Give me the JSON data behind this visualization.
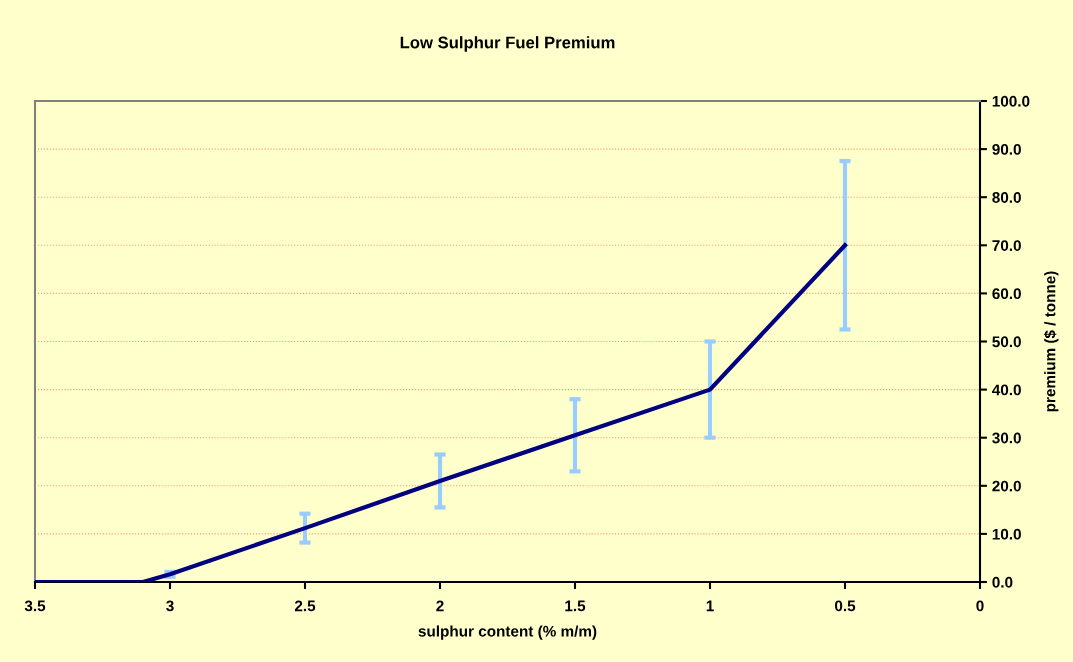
{
  "chart_data": {
    "type": "line",
    "title": "Low Sulphur Fuel Premium",
    "xlabel": "sulphur content (% m/m)",
    "ylabel": "premium ($ / tonne)",
    "series": [
      {
        "color": "#000080",
        "x": [
          3.5,
          3.1,
          3.0,
          2.5,
          2.0,
          1.5,
          1.0,
          0.5
        ],
        "values": [
          0,
          0,
          1.6,
          11.2,
          21,
          30.5,
          40,
          70
        ],
        "errors": [
          null,
          0,
          0.5,
          3,
          5.5,
          7.5,
          10,
          17.5
        ]
      }
    ],
    "xlim": [
      3.5,
      0
    ],
    "xticks": [
      3.5,
      3,
      2.5,
      2,
      1.5,
      1,
      0.5,
      0
    ],
    "ylim": [
      0,
      100
    ],
    "yticks": [
      {
        "value": 0,
        "label": "0.0"
      },
      {
        "value": 10,
        "label": "10.0"
      },
      {
        "value": 20,
        "label": "20.0"
      },
      {
        "value": 30,
        "label": "30.0"
      },
      {
        "value": 40,
        "label": "40.0"
      },
      {
        "value": 50,
        "label": "50.0"
      },
      {
        "value": 60,
        "label": "60.0"
      },
      {
        "value": 70,
        "label": "70.0"
      },
      {
        "value": 80,
        "label": "80.0"
      },
      {
        "value": 90,
        "label": "90.0"
      },
      {
        "value": 100,
        "label": "100.0"
      }
    ],
    "grid": "y",
    "marker": "none",
    "line_style": "solid"
  }
}
